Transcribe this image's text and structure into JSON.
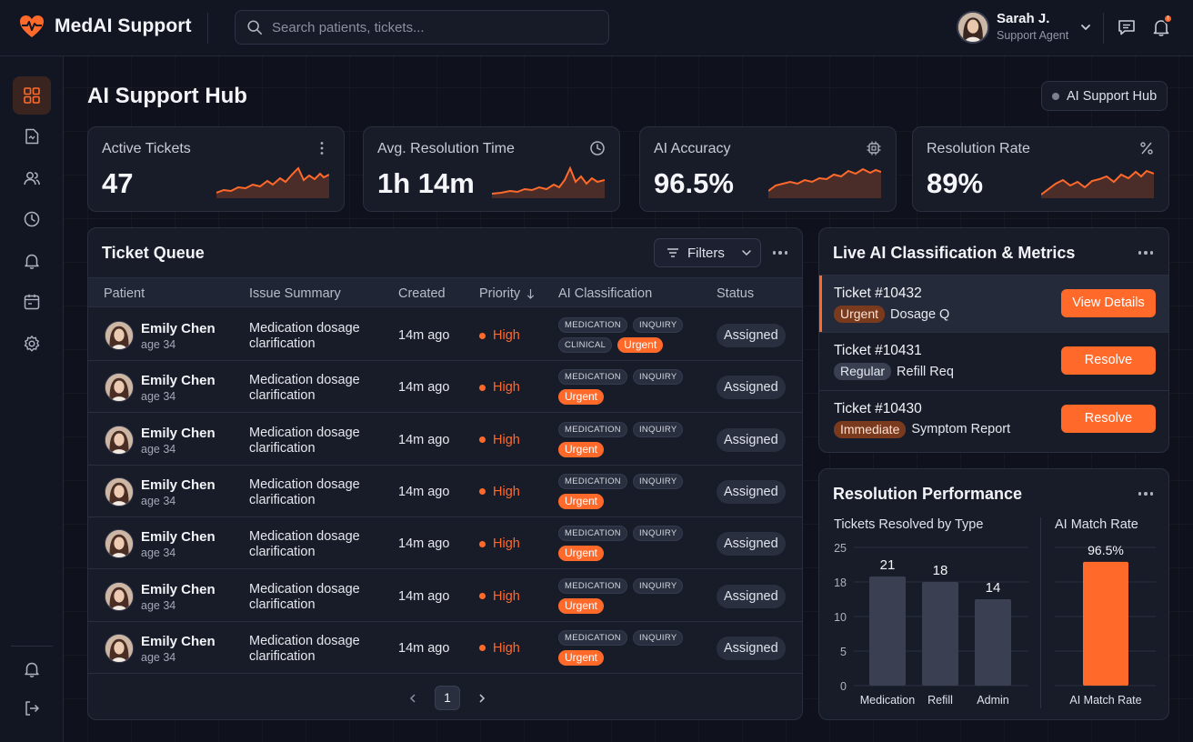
{
  "app": {
    "name": "MedAI Support",
    "search_placeholder": "Search patients, tickets...",
    "user": {
      "name": "Sarah J.",
      "role": "Support Agent"
    },
    "notification_badge": "!"
  },
  "sidebar": {
    "items": [
      "dashboard-icon",
      "document-icon",
      "users-icon",
      "clock-icon",
      "bell-icon",
      "calendar-icon",
      "gear-icon"
    ],
    "bottom_items": [
      "bell-icon",
      "logout-icon"
    ],
    "active_index": 0
  },
  "page": {
    "title": "AI Support Hub",
    "status_pill": "AI Support Hub"
  },
  "stats": [
    {
      "label": "Active Tickets",
      "value": "47",
      "icon": "more-icon"
    },
    {
      "label": "Avg. Resolution Time",
      "value": "1h 14m",
      "icon": "clock-icon"
    },
    {
      "label": "AI Accuracy",
      "value": "96.5%",
      "icon": "chip-icon"
    },
    {
      "label": "Resolution Rate",
      "value": "89%",
      "icon": "percent-icon"
    }
  ],
  "queue": {
    "title": "Ticket Queue",
    "filters_label": "Filters",
    "columns": [
      "Patient",
      "Issue Summary",
      "Created",
      "Priority",
      "AI Classification",
      "Status"
    ],
    "rows": [
      {
        "name": "Emily Chen",
        "age": "age 34",
        "issue": "Medication dosage clarification",
        "created": "14m ago",
        "priority": "High",
        "tags": [
          "MEDICATION",
          "INQUIRY",
          "CLINICAL"
        ],
        "urgent": "Urgent",
        "status": "Assigned"
      },
      {
        "name": "Emily Chen",
        "age": "age 34",
        "issue": "Medication dosage clarification",
        "created": "14m ago",
        "priority": "High",
        "tags": [
          "MEDICATION",
          "INQUIRY"
        ],
        "urgent": "Urgent",
        "status": "Assigned"
      },
      {
        "name": "Emily Chen",
        "age": "age 34",
        "issue": "Medication dosage clarification",
        "created": "14m ago",
        "priority": "High",
        "tags": [
          "MEDICATION",
          "INQUIRY"
        ],
        "urgent": "Urgent",
        "status": "Assigned"
      },
      {
        "name": "Emily Chen",
        "age": "age 34",
        "issue": "Medication dosage clarification",
        "created": "14m ago",
        "priority": "High",
        "tags": [
          "MEDICATION",
          "INQUIRY"
        ],
        "urgent": "Urgent",
        "status": "Assigned"
      },
      {
        "name": "Emily Chen",
        "age": "age 34",
        "issue": "Medication dosage clarification",
        "created": "14m ago",
        "priority": "High",
        "tags": [
          "MEDICATION",
          "INQUIRY"
        ],
        "urgent": "Urgent",
        "status": "Assigned"
      },
      {
        "name": "Emily Chen",
        "age": "age 34",
        "issue": "Medication dosage clarification",
        "created": "14m ago",
        "priority": "High",
        "tags": [
          "MEDICATION",
          "INQUIRY"
        ],
        "urgent": "Urgent",
        "status": "Assigned"
      },
      {
        "name": "Emily Chen",
        "age": "age 34",
        "issue": "Medication dosage clarification",
        "created": "14m ago",
        "priority": "High",
        "tags": [
          "MEDICATION",
          "INQUIRY"
        ],
        "urgent": "Urgent",
        "status": "Assigned"
      }
    ],
    "pager": {
      "current": "1"
    }
  },
  "live": {
    "title": "Live AI Classification & Metrics",
    "items": [
      {
        "ticket": "Ticket #10432",
        "badge": "Urgent",
        "badge_style": "orange",
        "summary": "Dosage Q",
        "action": "View Details"
      },
      {
        "ticket": "Ticket #10431",
        "badge": "Regular",
        "badge_style": "gray",
        "summary": "Refill Req",
        "action": "Resolve"
      },
      {
        "ticket": "Ticket #10430",
        "badge": "Immediate",
        "badge_style": "orange",
        "summary": "Symptom Report",
        "action": "Resolve"
      }
    ]
  },
  "performance": {
    "title": "Resolution Performance",
    "left_subtitle": "Tickets Resolved by Type",
    "right_subtitle": "AI Match Rate"
  },
  "colors": {
    "accent": "#ff6a2b",
    "bar_gray": "#3a3f52",
    "background": "#0f121c",
    "card": "#181c29"
  },
  "chart_data": [
    {
      "type": "bar",
      "title": "Tickets Resolved by Type",
      "categories": [
        "Medication",
        "Refill",
        "Admin"
      ],
      "values": [
        21,
        18,
        14
      ],
      "yticks": [
        "25",
        "18",
        "10",
        "5",
        "0"
      ],
      "data_labels": [
        "21",
        "18",
        "14"
      ],
      "grid": true
    },
    {
      "type": "bar",
      "title": "AI Match Rate",
      "categories": [
        "AI Match Rate"
      ],
      "values": [
        96.5
      ],
      "data_labels": [
        "96.5%"
      ],
      "ylim": [
        0,
        100
      ],
      "grid": true
    }
  ]
}
